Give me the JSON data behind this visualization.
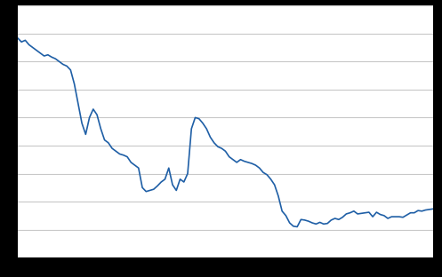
{
  "title": "",
  "line_color": "#1f5fa6",
  "line_width": 1.2,
  "background_color": "#ffffff",
  "outer_background": "#000000",
  "grid_color": "#c8c8c8",
  "xlim": [
    1900,
    2010
  ],
  "ylim": [
    1.0,
    5.5
  ],
  "years": [
    1900,
    1901,
    1902,
    1903,
    1904,
    1905,
    1906,
    1907,
    1908,
    1909,
    1910,
    1911,
    1912,
    1913,
    1914,
    1915,
    1916,
    1917,
    1918,
    1919,
    1920,
    1921,
    1922,
    1923,
    1924,
    1925,
    1926,
    1927,
    1928,
    1929,
    1930,
    1931,
    1932,
    1933,
    1934,
    1935,
    1936,
    1937,
    1938,
    1939,
    1940,
    1941,
    1942,
    1943,
    1944,
    1945,
    1946,
    1947,
    1948,
    1949,
    1950,
    1951,
    1952,
    1953,
    1954,
    1955,
    1956,
    1957,
    1958,
    1959,
    1960,
    1961,
    1962,
    1963,
    1964,
    1965,
    1966,
    1967,
    1968,
    1969,
    1970,
    1971,
    1972,
    1973,
    1974,
    1975,
    1976,
    1977,
    1978,
    1979,
    1980,
    1981,
    1982,
    1983,
    1984,
    1985,
    1986,
    1987,
    1988,
    1989,
    1990,
    1991,
    1992,
    1993,
    1994,
    1995,
    1996,
    1997,
    1998,
    1999,
    2000,
    2001,
    2002,
    2003,
    2004,
    2005,
    2006,
    2007,
    2008,
    2009,
    2010
  ],
  "tfr": [
    4.92,
    4.85,
    4.88,
    4.8,
    4.75,
    4.7,
    4.65,
    4.6,
    4.62,
    4.58,
    4.55,
    4.5,
    4.45,
    4.42,
    4.35,
    4.1,
    3.75,
    3.4,
    3.2,
    3.5,
    3.65,
    3.55,
    3.3,
    3.1,
    3.05,
    2.95,
    2.9,
    2.85,
    2.83,
    2.8,
    2.7,
    2.65,
    2.6,
    2.25,
    2.18,
    2.2,
    2.22,
    2.28,
    2.35,
    2.4,
    2.6,
    2.3,
    2.2,
    2.4,
    2.35,
    2.5,
    3.3,
    3.5,
    3.48,
    3.4,
    3.3,
    3.15,
    3.05,
    2.98,
    2.95,
    2.9,
    2.8,
    2.75,
    2.7,
    2.75,
    2.72,
    2.7,
    2.68,
    2.65,
    2.6,
    2.52,
    2.48,
    2.4,
    2.3,
    2.1,
    1.83,
    1.75,
    1.62,
    1.56,
    1.55,
    1.68,
    1.67,
    1.65,
    1.62,
    1.6,
    1.63,
    1.6,
    1.61,
    1.67,
    1.7,
    1.68,
    1.72,
    1.78,
    1.8,
    1.83,
    1.78,
    1.79,
    1.8,
    1.81,
    1.73,
    1.81,
    1.77,
    1.75,
    1.7,
    1.73,
    1.73,
    1.73,
    1.72,
    1.76,
    1.8,
    1.8,
    1.84,
    1.83,
    1.85,
    1.86,
    1.87
  ]
}
